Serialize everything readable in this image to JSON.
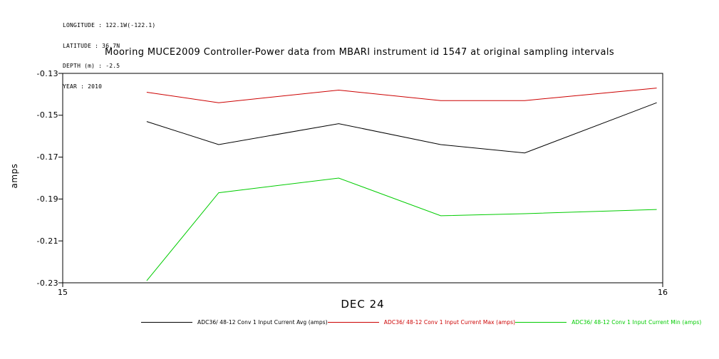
{
  "meta": {
    "line1": "LONGITUDE : 122.1W(-122.1)",
    "line2": "LATITUDE : 36.7N",
    "line3": "DEPTH (m) : -2.5",
    "line4": "YEAR : 2010"
  },
  "title": "Mooring MUCE2009 Controller-Power data from MBARI instrument id 1547 at original sampling intervals",
  "chart_data": {
    "type": "line",
    "title": "Mooring MUCE2009 Controller-Power data from MBARI instrument id 1547 at original sampling intervals",
    "xlabel": "DEC 24",
    "ylabel": "amps",
    "xlim": [
      15,
      16
    ],
    "ylim": [
      -0.23,
      -0.13
    ],
    "grid": false,
    "legend_position": "bottom",
    "xticks": [
      {
        "value": 15,
        "label": "15"
      },
      {
        "value": 16,
        "label": "16"
      }
    ],
    "yticks": [
      {
        "value": -0.13,
        "label": "-0.13"
      },
      {
        "value": -0.15,
        "label": "-0.15"
      },
      {
        "value": -0.17,
        "label": "-0.17"
      },
      {
        "value": -0.19,
        "label": "-0.19"
      },
      {
        "value": -0.21,
        "label": "-0.21"
      },
      {
        "value": -0.23,
        "label": "-0.23"
      }
    ],
    "x": [
      15.14,
      15.26,
      15.46,
      15.63,
      15.77,
      15.99
    ],
    "series": [
      {
        "name": "ADC36/ 48-12 Conv 1 Input Current Avg (amps)",
        "color": "#000000",
        "values": [
          -0.153,
          -0.164,
          -0.154,
          -0.164,
          -0.168,
          -0.144
        ]
      },
      {
        "name": "ADC36/ 48-12 Conv 1 Input Current Max (amps)",
        "color": "#cc0000",
        "values": [
          -0.139,
          -0.144,
          -0.138,
          -0.143,
          -0.143,
          -0.137
        ]
      },
      {
        "name": "ADC36/ 48-12 Conv 1 Input Current Min (amps)",
        "color": "#00cc00",
        "values": [
          -0.229,
          -0.187,
          -0.18,
          -0.198,
          -0.197,
          -0.195
        ]
      }
    ]
  },
  "legend": {
    "items": [
      {
        "label": "ADC36/ 48-12 Conv 1 Input Current Avg (amps)",
        "color": "#000000"
      },
      {
        "label": "ADC36/ 48-12 Conv 1 Input Current Max (amps)",
        "color": "#cc0000"
      },
      {
        "label": "ADC36/ 48-12 Conv 1 Input Current Min (amps)",
        "color": "#00cc00"
      }
    ]
  }
}
